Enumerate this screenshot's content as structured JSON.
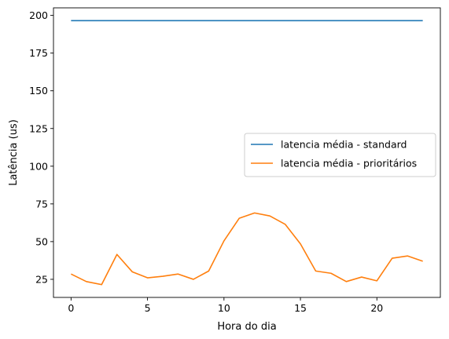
{
  "chart_data": {
    "type": "line",
    "xlabel": "Hora do dia",
    "ylabel": "Latência (us)",
    "xlim": [
      -1.15,
      24.15
    ],
    "ylim": [
      13,
      205
    ],
    "xticks": [
      0,
      5,
      10,
      15,
      20
    ],
    "yticks": [
      25,
      50,
      75,
      100,
      125,
      150,
      175,
      200
    ],
    "grid": false,
    "legend_position": "center-right",
    "x": [
      0,
      1,
      2,
      3,
      4,
      5,
      6,
      7,
      8,
      9,
      10,
      11,
      12,
      13,
      14,
      15,
      16,
      17,
      18,
      19,
      20,
      21,
      22,
      23
    ],
    "series": [
      {
        "name": "latencia média - standard",
        "color": "#1f77b4",
        "values": [
          196.5,
          196.5,
          196.5,
          196.5,
          196.5,
          196.5,
          196.5,
          196.5,
          196.5,
          196.5,
          196.5,
          196.5,
          196.5,
          196.5,
          196.5,
          196.5,
          196.5,
          196.5,
          196.5,
          196.5,
          196.5,
          196.5,
          196.5,
          196.5
        ]
      },
      {
        "name": "latencia média - prioritários",
        "color": "#ff7f0e",
        "values": [
          28.5,
          23.5,
          21.5,
          41.5,
          30,
          26,
          27,
          28.5,
          25,
          30.5,
          50.5,
          65.5,
          69,
          67,
          61.5,
          48.5,
          30.5,
          29,
          23.5,
          26.5,
          24,
          39,
          40.5,
          37
        ]
      }
    ]
  }
}
